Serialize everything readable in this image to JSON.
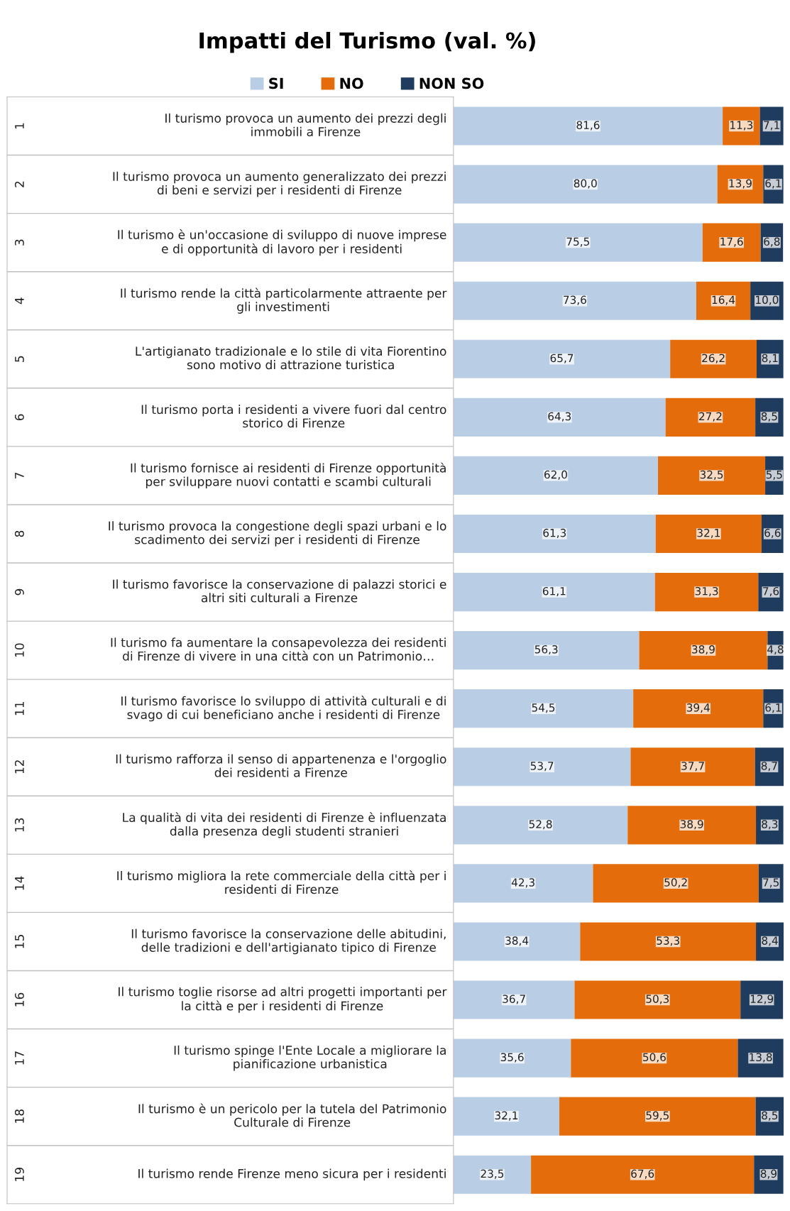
{
  "chart_data": {
    "type": "bar",
    "orientation": "horizontal",
    "stacked": true,
    "title": "Impatti del Turismo (val. %)",
    "legend": "top",
    "categories": [
      "Il turismo provoca un aumento dei prezzi degli\nimmobili a Firenze",
      "Il turismo provoca un aumento generalizzato dei prezzi\ndi beni e servizi per i residenti di Firenze",
      "Il turismo è un'occasione di sviluppo di nuove imprese\ne di opportunità di lavoro per i residenti",
      "Il turismo rende la città particolarmente attraente per\ngli investimenti",
      "L'artigianato tradizionale e lo stile di vita Fiorentino\nsono motivo di attrazione turistica",
      "Il turismo porta i residenti a vivere fuori dal centro\nstorico di Firenze",
      "Il turismo fornisce ai residenti di Firenze opportunità\nper sviluppare nuovi contatti e scambi culturali",
      "Il turismo provoca la congestione degli spazi urbani e lo\nscadimento dei servizi per i residenti di Firenze",
      "Il turismo favorisce la conservazione di palazzi storici e\naltri siti culturali a Firenze",
      "Il turismo fa aumentare la consapevolezza dei residenti\ndi Firenze di vivere in una città con un Patrimonio…",
      "Il turismo favorisce lo sviluppo di attività culturali e di\nsvago di cui beneficiano anche i residenti di Firenze",
      "Il turismo rafforza il senso di appartenenza e l'orgoglio\ndei residenti a Firenze",
      "La qualità di vita dei residenti di Firenze è influenzata\ndalla presenza degli studenti stranieri",
      "Il turismo migliora la rete commerciale della città per i\nresidenti di Firenze",
      "Il turismo favorisce la conservazione delle abitudini,\ndelle tradizioni e dell'artigianato tipico di Firenze",
      "Il turismo toglie risorse ad altri progetti importanti per\nla città e per i residenti di Firenze",
      "Il turismo spinge l'Ente Locale a migliorare la\npianificazione urbanistica",
      "Il turismo è un pericolo per la tutela del Patrimonio\nCulturale di Firenze",
      "Il turismo rende Firenze meno sicura per i residenti"
    ],
    "annotations": [
      "1",
      "2",
      "3",
      "4",
      "5",
      "6",
      "7",
      "8",
      "9",
      "10",
      "11",
      "12",
      "13",
      "14",
      "15",
      "16",
      "17",
      "18",
      "19"
    ],
    "series": [
      {
        "name": "SI",
        "color": "#b9cde5",
        "values": [
          81.6,
          80.0,
          75.5,
          73.6,
          65.7,
          64.3,
          62.0,
          61.3,
          61.1,
          56.3,
          54.5,
          53.7,
          52.8,
          42.3,
          38.4,
          36.7,
          35.6,
          32.1,
          23.5
        ],
        "value_labels": [
          "81,6",
          "80,0",
          "75,5",
          "73,6",
          "65,7",
          "64,3",
          "62,0",
          "61,3",
          "61,1",
          "56,3",
          "54,5",
          "53,7",
          "52,8",
          "42,3",
          "38,4",
          "36,7",
          "35,6",
          "32,1",
          "23,5"
        ]
      },
      {
        "name": "NO",
        "color": "#e46c0a",
        "values": [
          11.3,
          13.9,
          17.6,
          16.4,
          26.2,
          27.2,
          32.5,
          32.1,
          31.3,
          38.9,
          39.4,
          37.7,
          38.9,
          50.2,
          53.3,
          50.3,
          50.6,
          59.5,
          67.6
        ],
        "value_labels": [
          "11,3",
          "13,9",
          "17,6",
          "16,4",
          "26,2",
          "27,2",
          "32,5",
          "32,1",
          "31,3",
          "38,9",
          "39,4",
          "37,7",
          "38,9",
          "50,2",
          "53,3",
          "50,3",
          "50,6",
          "59,5",
          "67,6"
        ]
      },
      {
        "name": "NON SO",
        "color": "#1f3b5e",
        "values": [
          7.1,
          6.1,
          6.8,
          10.0,
          8.1,
          8.5,
          5.5,
          6.6,
          7.6,
          4.8,
          6.1,
          8.7,
          8.3,
          7.5,
          8.4,
          12.9,
          13.8,
          8.5,
          8.9
        ],
        "value_labels": [
          "7,1",
          "6,1",
          "6,8",
          "10,0",
          "8,1",
          "8,5",
          "5,5",
          "6,6",
          "7,6",
          "4,8",
          "6,1",
          "8,7",
          "8,3",
          "7,5",
          "8,4",
          "12,9",
          "13,8",
          "8,5",
          "8,9"
        ]
      }
    ]
  }
}
